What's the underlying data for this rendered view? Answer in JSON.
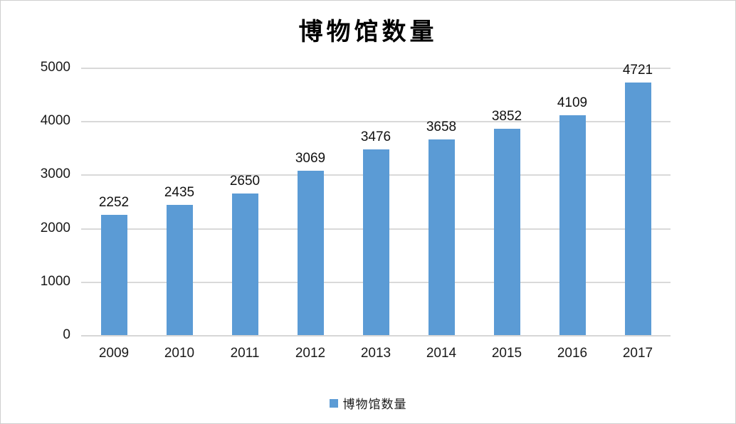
{
  "chart_data": {
    "type": "bar",
    "title": "博物馆数量",
    "categories": [
      "2009",
      "2010",
      "2011",
      "2012",
      "2013",
      "2014",
      "2015",
      "2016",
      "2017"
    ],
    "series": [
      {
        "name": "博物馆数量",
        "values": [
          2252,
          2435,
          2650,
          3069,
          3476,
          3658,
          3852,
          4109,
          4721
        ]
      }
    ],
    "data_labels_shown": true,
    "ylim": [
      0,
      5000
    ],
    "ytick_step": 1000,
    "ytick_labels_top_to_bottom": [
      "5000",
      "4000",
      "3000",
      "2000",
      "1000",
      "0"
    ],
    "grid": "horizontal",
    "legend": {
      "position": "bottom",
      "label": "博物馆数量",
      "marker": "square"
    },
    "colors": {
      "bar": "#5B9BD5",
      "legend_marker": "#5B9BD5",
      "gridline": "#D9D9D9",
      "axis_line": "#D6D6D6",
      "text": "#1a1a1a",
      "title": "#000000",
      "background": "#FFFFFF",
      "border": "#CFCFCF"
    }
  }
}
